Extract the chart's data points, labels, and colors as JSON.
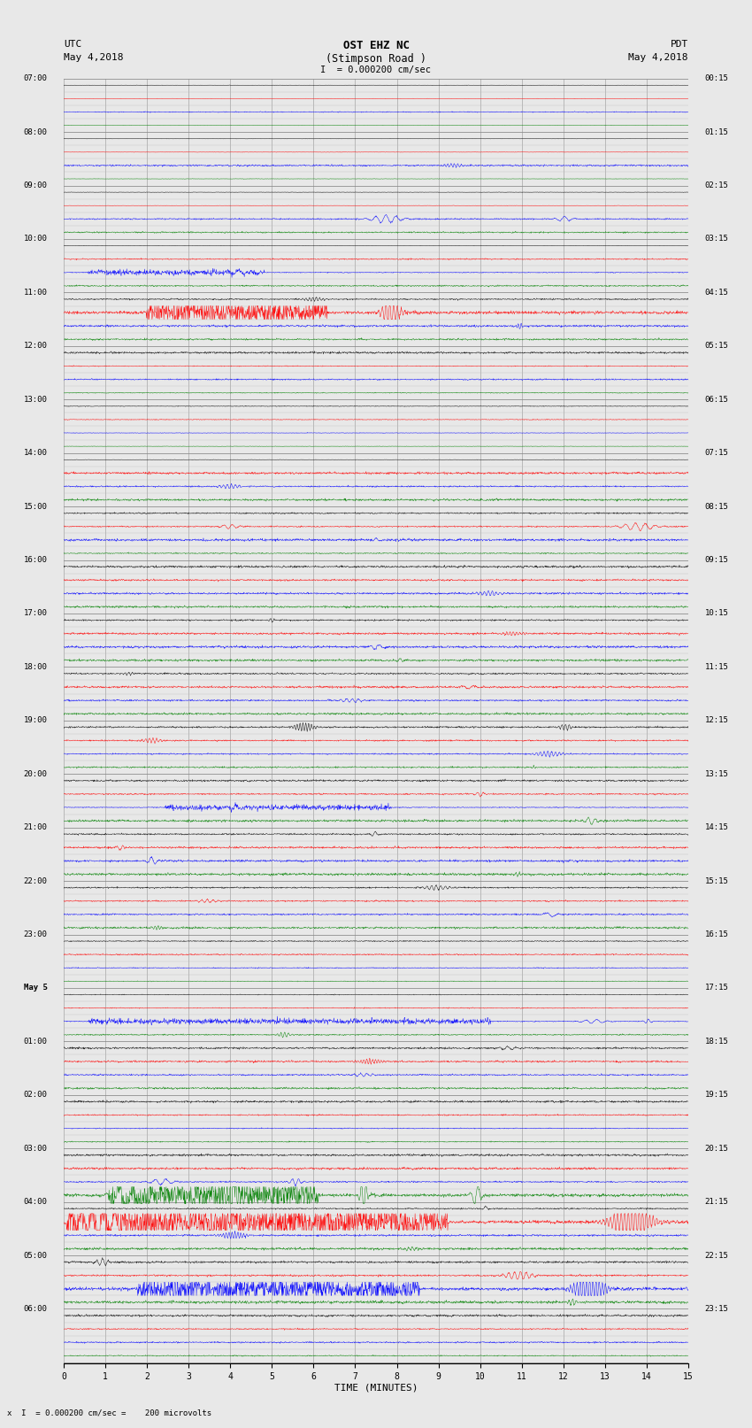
{
  "title_line1": "OST EHZ NC",
  "title_line2": "(Stimpson Road )",
  "title_scale": "I  = 0.000200 cm/sec",
  "left_label_top": "UTC",
  "left_label_date": "May 4,2018",
  "right_label_top": "PDT",
  "right_label_date": "May 4,2018",
  "bottom_label": "TIME (MINUTES)",
  "bottom_note": "= 0.000200 cm/sec =    200 microvolts",
  "xlabel_scale_letter": "x  I",
  "utc_labels": [
    "07:00",
    "08:00",
    "09:00",
    "10:00",
    "11:00",
    "12:00",
    "13:00",
    "14:00",
    "15:00",
    "16:00",
    "17:00",
    "18:00",
    "19:00",
    "20:00",
    "21:00",
    "22:00",
    "23:00",
    "May 5",
    "01:00",
    "02:00",
    "03:00",
    "04:00",
    "05:00",
    "06:00"
  ],
  "pdt_labels": [
    "00:15",
    "01:15",
    "02:15",
    "03:15",
    "04:15",
    "05:15",
    "06:15",
    "07:15",
    "08:15",
    "09:15",
    "10:15",
    "11:15",
    "12:15",
    "13:15",
    "14:15",
    "15:15",
    "16:15",
    "17:15",
    "18:15",
    "19:15",
    "20:15",
    "21:15",
    "22:15",
    "23:15"
  ],
  "num_rows": 96,
  "colors_cycle": [
    "black",
    "red",
    "blue",
    "green"
  ],
  "bg_color": "#e8e8e8",
  "grid_color_major": "#888888",
  "grid_color_minor": "#bbbbbb",
  "fig_width": 8.5,
  "fig_height": 16.13,
  "row_amplitudes": [
    0.05,
    0.05,
    0.15,
    0.05,
    0.05,
    0.05,
    0.4,
    0.05,
    0.05,
    0.05,
    0.8,
    0.2,
    0.05,
    0.2,
    0.9,
    0.2,
    0.4,
    1.2,
    0.5,
    0.3,
    0.3,
    0.15,
    0.2,
    0.1,
    0.1,
    0.1,
    0.1,
    0.05,
    0.05,
    0.3,
    0.5,
    0.3,
    0.2,
    0.8,
    0.4,
    0.2,
    0.3,
    0.3,
    0.5,
    0.3,
    0.4,
    0.4,
    0.5,
    0.35,
    0.35,
    0.35,
    0.4,
    0.3,
    0.8,
    0.5,
    0.6,
    0.4,
    0.3,
    0.5,
    0.9,
    0.7,
    0.5,
    0.5,
    0.8,
    0.5,
    0.5,
    0.4,
    0.5,
    0.4,
    0.15,
    0.2,
    0.15,
    0.1,
    0.1,
    0.15,
    0.9,
    0.5,
    0.4,
    0.6,
    0.4,
    0.3,
    0.3,
    0.2,
    0.15,
    0.15,
    0.3,
    0.3,
    0.8,
    1.5,
    0.5,
    1.5,
    0.8,
    0.4,
    0.8,
    0.7,
    1.2,
    0.6,
    0.3,
    0.2,
    0.2,
    0.15
  ]
}
